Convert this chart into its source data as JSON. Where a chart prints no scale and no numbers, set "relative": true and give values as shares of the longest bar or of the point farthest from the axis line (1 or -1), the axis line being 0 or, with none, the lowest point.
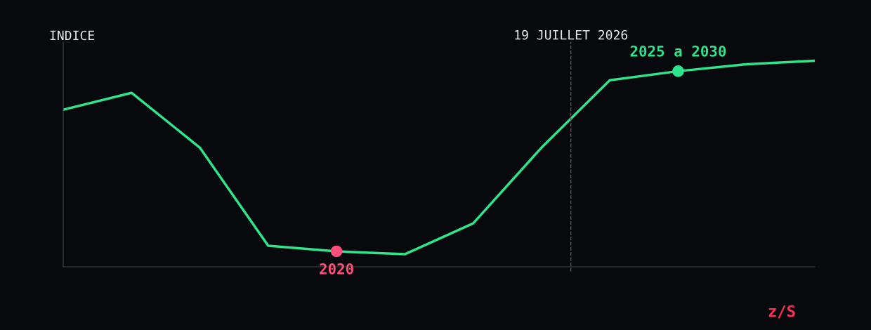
{
  "chart_data": {
    "type": "line",
    "relative": true,
    "ylabel": "INDICE",
    "xlabel": "z/S",
    "categories": [
      null,
      null,
      null,
      null,
      null,
      null,
      null,
      null,
      null,
      null,
      null,
      null
    ],
    "series": [
      {
        "color": "#2ee58e",
        "values": [
          0.762,
          0.844,
          0.578,
          0.102,
          0.075,
          0.061,
          0.211,
          0.578,
          0.905,
          0.949,
          0.983,
          1.0
        ]
      }
    ],
    "annotations": [
      {
        "text": "2020",
        "y": 0.075
      },
      {
        "text": "2025 a 2030",
        "y": 0.949
      },
      "19 JUILLET 2026"
    ],
    "grid": false,
    "legend": false
  }
}
